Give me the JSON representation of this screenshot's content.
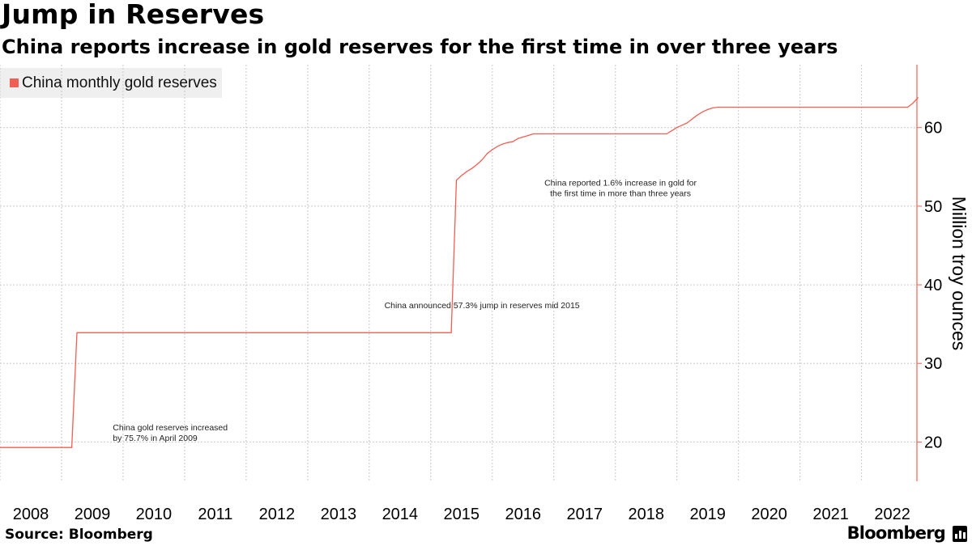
{
  "header": {
    "title": "Jump in Reserves",
    "subtitle": "China reports increase in gold reserves for the first time in over three years"
  },
  "footer": {
    "source": "Source: Bloomberg",
    "brand": "Bloomberg"
  },
  "colors": {
    "series": "#f06055",
    "legend_bg": "#efefef",
    "grid": "#c8c8c8"
  },
  "chart_data": {
    "type": "line",
    "title": "Jump in Reserves",
    "subtitle": "China reports increase in gold reserves for the first time in over three years",
    "xlabel": "",
    "ylabel": "Million troy ounces",
    "xlim": [
      2008.0,
      2022.9
    ],
    "ylim": [
      15,
      68
    ],
    "x_ticks": [
      2008,
      2009,
      2010,
      2011,
      2012,
      2013,
      2014,
      2015,
      2016,
      2017,
      2018,
      2019,
      2020,
      2021,
      2022
    ],
    "y_ticks": [
      20,
      30,
      40,
      50,
      60
    ],
    "y_axis_side": "right",
    "grid": true,
    "legend_placement": "top-left",
    "series": [
      {
        "name": "China monthly gold reserves",
        "x": [
          "2008-01",
          "2009-03",
          "2009-04",
          "2015-05",
          "2015-06",
          "2015-07",
          "2015-08",
          "2015-09",
          "2015-10",
          "2015-11",
          "2015-12",
          "2016-01",
          "2016-02",
          "2016-03",
          "2016-04",
          "2016-05",
          "2016-06",
          "2016-07",
          "2016-08",
          "2016-09",
          "2016-10",
          "2018-11",
          "2018-12",
          "2019-01",
          "2019-02",
          "2019-03",
          "2019-04",
          "2019-05",
          "2019-06",
          "2019-07",
          "2019-08",
          "2019-09",
          "2022-10",
          "2022-11",
          "2022-12"
        ],
        "values": [
          19.3,
          19.3,
          33.9,
          33.9,
          53.3,
          53.9,
          54.4,
          54.8,
          55.3,
          55.9,
          56.7,
          57.2,
          57.6,
          57.9,
          58.1,
          58.2,
          58.6,
          58.8,
          59.0,
          59.2,
          59.2,
          59.2,
          59.6,
          60.0,
          60.3,
          60.6,
          61.1,
          61.6,
          62.0,
          62.3,
          62.5,
          62.6,
          62.6,
          63.1,
          63.8
        ]
      }
    ],
    "annotations": [
      {
        "text": "China gold reserves increased",
        "text2": "by 75.7% in April 2009",
        "x": "2009-11",
        "y": 21.5
      },
      {
        "text": "China announced 57.3% jump in reserves mid 2015",
        "x": "2015-11",
        "y": 37.0
      },
      {
        "text": "China reported 1.6% increase in gold for",
        "text2": "the first time in more than three years",
        "x": "2018-02",
        "y": 52.6
      }
    ]
  }
}
